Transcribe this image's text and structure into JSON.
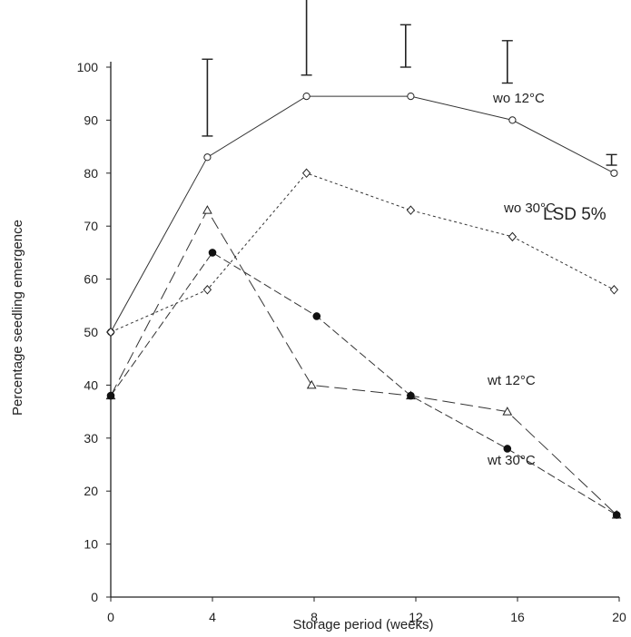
{
  "chart_data": {
    "type": "line",
    "title": "",
    "xlabel": "Storage period (weeks)",
    "ylabel": "Percentage seedling emergence",
    "xlim": [
      0,
      20
    ],
    "ylim": [
      0,
      100
    ],
    "x_ticks": [
      "0",
      "4",
      "8",
      "12",
      "16",
      "20"
    ],
    "y_ticks": [
      "0",
      "10",
      "20",
      "30",
      "40",
      "50",
      "60",
      "70",
      "80",
      "90",
      "100"
    ],
    "grid": false,
    "series": [
      {
        "name": "wo 12°C",
        "marker": "open-circle",
        "points": [
          [
            0,
            50
          ],
          [
            3.8,
            83
          ],
          [
            7.7,
            94.5
          ],
          [
            11.8,
            94.5
          ],
          [
            15.8,
            90
          ],
          [
            19.8,
            80
          ]
        ]
      },
      {
        "name": "wo 30°C",
        "marker": "open-diamond",
        "points": [
          [
            0,
            50
          ],
          [
            3.8,
            58
          ],
          [
            7.7,
            80
          ],
          [
            11.8,
            73
          ],
          [
            15.8,
            68
          ],
          [
            19.8,
            58
          ]
        ]
      },
      {
        "name": "wt 12°C",
        "marker": "open-triangle",
        "points": [
          [
            0,
            38
          ],
          [
            3.8,
            73
          ],
          [
            7.9,
            40
          ],
          [
            11.8,
            38
          ],
          [
            15.6,
            35
          ],
          [
            19.9,
            15.5
          ]
        ]
      },
      {
        "name": "wt 30°C",
        "marker": "filled-circle",
        "points": [
          [
            0,
            38
          ],
          [
            4,
            65
          ],
          [
            8.1,
            53
          ],
          [
            11.8,
            38
          ],
          [
            15.6,
            28
          ],
          [
            19.9,
            15.5
          ]
        ]
      }
    ],
    "lsd_label": "LSD 5%",
    "lsd_bars": [
      {
        "x": 3.8,
        "low": 87,
        "high": 101.5
      },
      {
        "x": 7.7,
        "low": 98.5,
        "high": 113
      },
      {
        "x": 11.6,
        "low": 100,
        "high": 108
      },
      {
        "x": 15.6,
        "low": 97,
        "high": 105
      },
      {
        "x": 19.7,
        "low": 81.5,
        "high": 83.5
      }
    ]
  }
}
